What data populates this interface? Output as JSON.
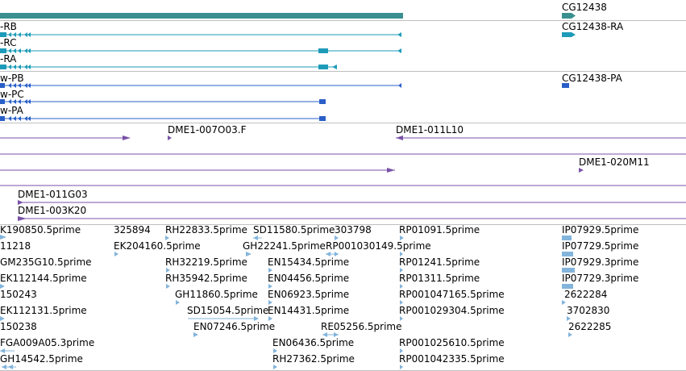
{
  "colors": {
    "gene": "#3a8f8f",
    "mrna": "#1e9bb8",
    "protein": "#2a5fc8",
    "clone": "#7a52a8",
    "est": "#82b4dc",
    "separator": "#bfbfbf"
  },
  "gene_track": {
    "right_label": "CG12438"
  },
  "mrna_track": {
    "left_labels": [
      "-RB",
      "-RC",
      "-RA"
    ],
    "right_label": "CG12438-RA"
  },
  "protein_track": {
    "left_labels": [
      "w-PB",
      "w-PC",
      "w-PA"
    ],
    "right_label": "CG12438-PA"
  },
  "clone_track": {
    "labels": [
      "DME1-007O03.F",
      "DME1-011L10",
      "DME1-020M11",
      "DME1-011G03",
      "DME1-003K20"
    ]
  },
  "est_track": {
    "labels": [
      "K190850.5prime",
      "325894",
      "RH22833.5prime",
      "SD11580.5prime",
      "303798",
      "RP01091.5prime",
      "IP07929.5prime",
      "11218",
      "EK204160.5prime",
      "GH22241.5prime",
      "RP001030149.5prime",
      "IP07729.5prime",
      "GM235G10.5prime",
      "RH32219.5prime",
      "EN15434.5prime",
      "RP01241.5prime",
      "IP07929.3prime",
      "EK112144.5prime",
      "RH35942.5prime",
      "EN04456.5prime",
      "RP01311.5prime",
      "IP07729.3prime",
      "150243",
      "GH11860.5prime",
      "EN06923.5prime",
      "RP001047165.5prime",
      "2622284",
      "EK112131.5prime",
      "SD15054.5prime",
      "EN14431.5prime",
      "RP001029304.5prime",
      "3702830",
      "150238",
      "EN07246.5prime",
      "RE05256.5prime",
      "2622285",
      "FGA009A05.3prime",
      "EN06436.5prime",
      "RP001025610.5prime",
      "GH14542.5prime",
      "RH27362.5prime",
      "RP001042335.5prime"
    ]
  }
}
